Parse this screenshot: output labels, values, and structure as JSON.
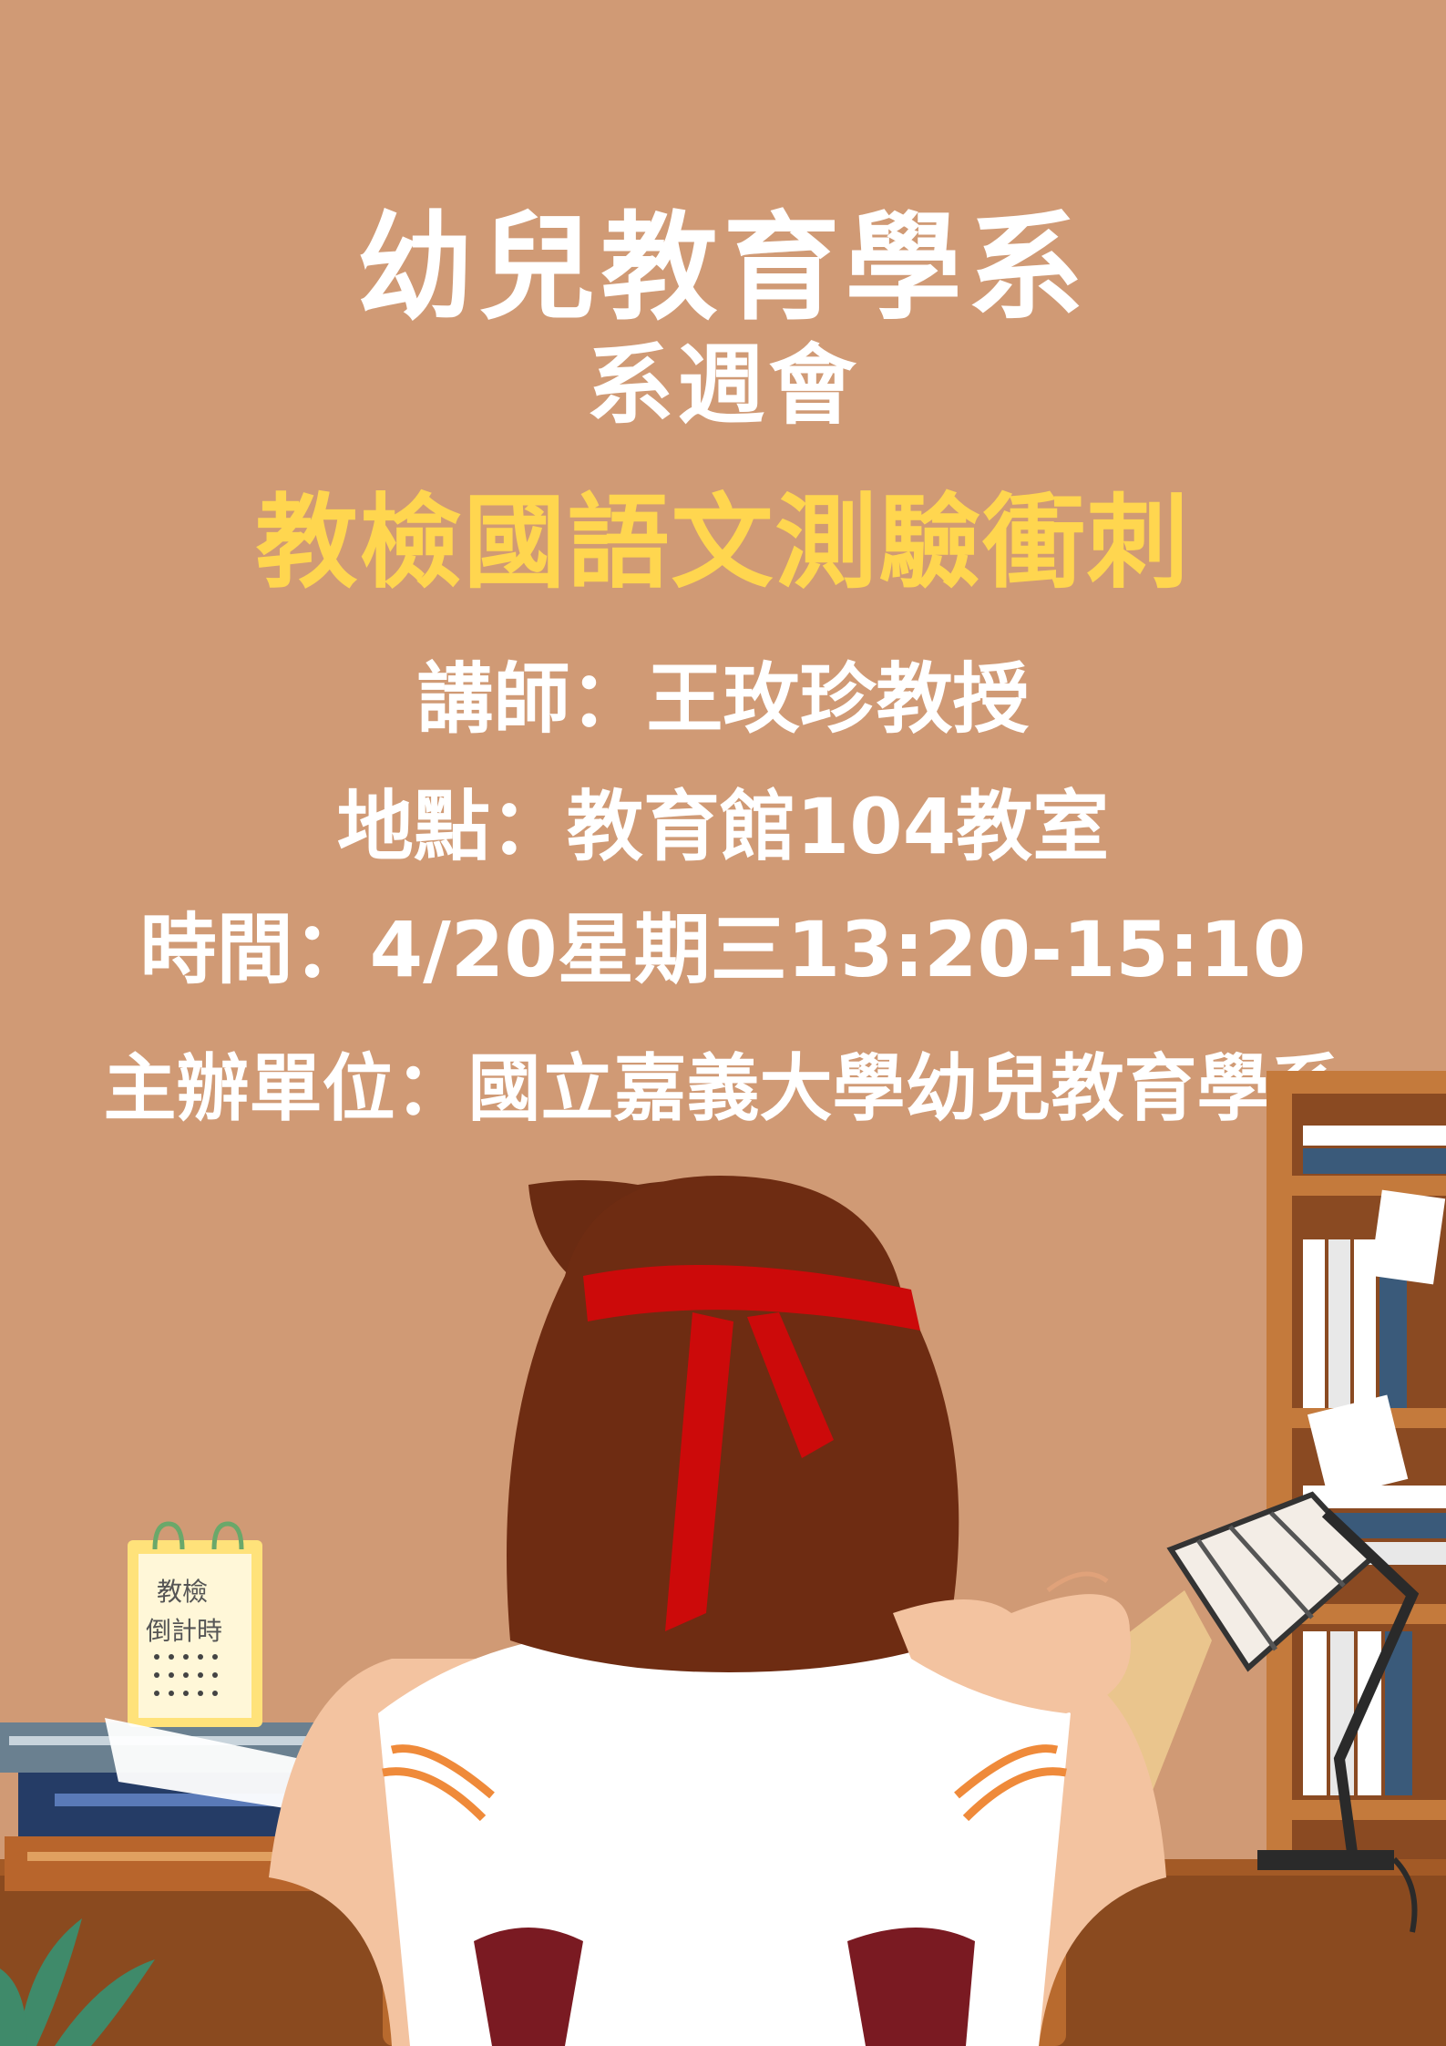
{
  "poster": {
    "department": "幼兒教育學系",
    "event": "系週會",
    "topic": "教檢國語文測驗衝刺",
    "lecturer": "講師：王玫珍教授",
    "location": "地點：教育館104教室",
    "time": "時間：4/20星期三13:20-15:10",
    "organizer": "主辦單位：國立嘉義大學幼兒教育學系"
  },
  "calendar": {
    "line1": "教檢",
    "line2": "倒計時"
  },
  "colors": {
    "background": "#d09a75",
    "text": "#ffffff",
    "highlight": "#ffd64f",
    "headband": "#cc0a0a"
  }
}
